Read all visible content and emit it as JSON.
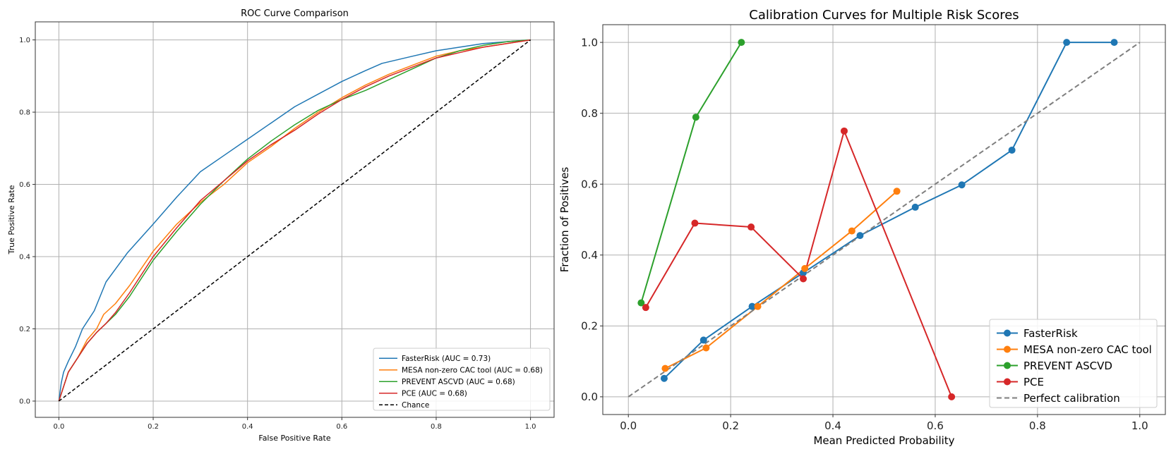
{
  "chart_data": [
    {
      "type": "line",
      "title": "ROC Curve Comparison",
      "xlabel": "False Positive Rate",
      "ylabel": "True Positive Rate",
      "xlim": [
        -0.05,
        1.05
      ],
      "ylim": [
        -0.045,
        1.05
      ],
      "xticks": [
        0.0,
        0.2,
        0.4,
        0.6,
        0.8,
        1.0
      ],
      "yticks": [
        0.0,
        0.2,
        0.4,
        0.6,
        0.8,
        1.0
      ],
      "tick_labels": [
        "0.0",
        "0.2",
        "0.4",
        "0.6",
        "0.8",
        "1.0"
      ],
      "grid": true,
      "legend_position": "lower-right",
      "series": [
        {
          "name": "FasterRisk (AUC = 0.73)",
          "color": "#1f77b4",
          "x": [
            0.0,
            0.005,
            0.01,
            0.02,
            0.035,
            0.05,
            0.075,
            0.1,
            0.145,
            0.2,
            0.25,
            0.3,
            0.35,
            0.4,
            0.45,
            0.5,
            0.55,
            0.6,
            0.65,
            0.685,
            0.75,
            0.8,
            0.85,
            0.9,
            0.95,
            1.0
          ],
          "y": [
            0.0,
            0.05,
            0.08,
            0.11,
            0.15,
            0.2,
            0.25,
            0.33,
            0.41,
            0.49,
            0.565,
            0.635,
            0.68,
            0.725,
            0.77,
            0.815,
            0.85,
            0.885,
            0.915,
            0.935,
            0.955,
            0.97,
            0.98,
            0.99,
            0.995,
            1.0
          ]
        },
        {
          "name": "MESA non-zero CAC tool (AUC = 0.68)",
          "color": "#ff7f0e",
          "x": [
            0.0,
            0.01,
            0.02,
            0.04,
            0.06,
            0.08,
            0.095,
            0.12,
            0.15,
            0.2,
            0.25,
            0.3,
            0.35,
            0.4,
            0.45,
            0.5,
            0.55,
            0.6,
            0.65,
            0.7,
            0.75,
            0.8,
            0.85,
            0.9,
            0.95,
            1.0
          ],
          "y": [
            0.0,
            0.04,
            0.08,
            0.12,
            0.17,
            0.2,
            0.24,
            0.27,
            0.32,
            0.415,
            0.49,
            0.55,
            0.6,
            0.66,
            0.705,
            0.755,
            0.8,
            0.84,
            0.875,
            0.905,
            0.93,
            0.955,
            0.97,
            0.98,
            0.99,
            1.0
          ]
        },
        {
          "name": "PREVENT ASCVD (AUC = 0.68)",
          "color": "#2ca02c",
          "x": [
            0.0,
            0.01,
            0.02,
            0.04,
            0.06,
            0.08,
            0.1,
            0.12,
            0.15,
            0.2,
            0.25,
            0.3,
            0.35,
            0.4,
            0.45,
            0.5,
            0.55,
            0.6,
            0.65,
            0.7,
            0.75,
            0.8,
            0.85,
            0.9,
            0.95,
            1.0
          ],
          "y": [
            0.0,
            0.04,
            0.08,
            0.12,
            0.16,
            0.19,
            0.215,
            0.24,
            0.29,
            0.39,
            0.47,
            0.545,
            0.61,
            0.67,
            0.72,
            0.765,
            0.805,
            0.835,
            0.86,
            0.89,
            0.92,
            0.95,
            0.97,
            0.985,
            0.995,
            1.0
          ]
        },
        {
          "name": "PCE (AUC = 0.68)",
          "color": "#d62728",
          "x": [
            0.0,
            0.01,
            0.02,
            0.04,
            0.06,
            0.08,
            0.1,
            0.12,
            0.15,
            0.2,
            0.25,
            0.3,
            0.35,
            0.4,
            0.45,
            0.5,
            0.55,
            0.6,
            0.65,
            0.7,
            0.75,
            0.8,
            0.85,
            0.9,
            0.95,
            1.0
          ],
          "y": [
            0.0,
            0.04,
            0.08,
            0.12,
            0.16,
            0.19,
            0.215,
            0.245,
            0.3,
            0.4,
            0.48,
            0.555,
            0.61,
            0.665,
            0.71,
            0.75,
            0.795,
            0.835,
            0.87,
            0.9,
            0.925,
            0.95,
            0.965,
            0.98,
            0.99,
            1.0
          ]
        },
        {
          "name": "Chance",
          "color": "#000000",
          "dashed": true,
          "x": [
            0.0,
            1.0
          ],
          "y": [
            0.0,
            1.0
          ]
        }
      ]
    },
    {
      "type": "line",
      "title": "Calibration Curves for Multiple Risk Scores",
      "xlabel": "Mean Predicted Probability",
      "ylabel": "Fraction of Positives",
      "xlim": [
        -0.05,
        1.05
      ],
      "ylim": [
        -0.05,
        1.05
      ],
      "xticks": [
        0.0,
        0.2,
        0.4,
        0.6,
        0.8,
        1.0
      ],
      "yticks": [
        0.0,
        0.2,
        0.4,
        0.6,
        0.8,
        1.0
      ],
      "tick_labels": [
        "0.0",
        "0.2",
        "0.4",
        "0.6",
        "0.8",
        "1.0"
      ],
      "grid": true,
      "legend_position": "lower-right",
      "series": [
        {
          "name": "FasterRisk",
          "color": "#1f77b4",
          "markers": true,
          "x": [
            0.07,
            0.147,
            0.242,
            0.342,
            0.453,
            0.561,
            0.652,
            0.75,
            0.857,
            0.95
          ],
          "y": [
            0.052,
            0.16,
            0.255,
            0.35,
            0.455,
            0.535,
            0.598,
            0.696,
            1.0,
            1.0
          ]
        },
        {
          "name": "MESA non-zero CAC tool",
          "color": "#ff7f0e",
          "markers": true,
          "x": [
            0.072,
            0.152,
            0.253,
            0.345,
            0.437,
            0.525
          ],
          "y": [
            0.08,
            0.138,
            0.255,
            0.362,
            0.468,
            0.58
          ]
        },
        {
          "name": "PREVENT ASCVD",
          "color": "#2ca02c",
          "markers": true,
          "x": [
            0.025,
            0.132,
            0.221
          ],
          "y": [
            0.265,
            0.789,
            1.0
          ]
        },
        {
          "name": "PCE",
          "color": "#d62728",
          "markers": true,
          "x": [
            0.034,
            0.13,
            0.24,
            0.342,
            0.422,
            0.632
          ],
          "y": [
            0.252,
            0.49,
            0.479,
            0.333,
            0.75,
            0.0
          ]
        },
        {
          "name": "Perfect calibration",
          "color": "#7f7f7f",
          "dashed": true,
          "x": [
            0.0,
            1.0
          ],
          "y": [
            0.0,
            1.0
          ]
        }
      ]
    }
  ]
}
